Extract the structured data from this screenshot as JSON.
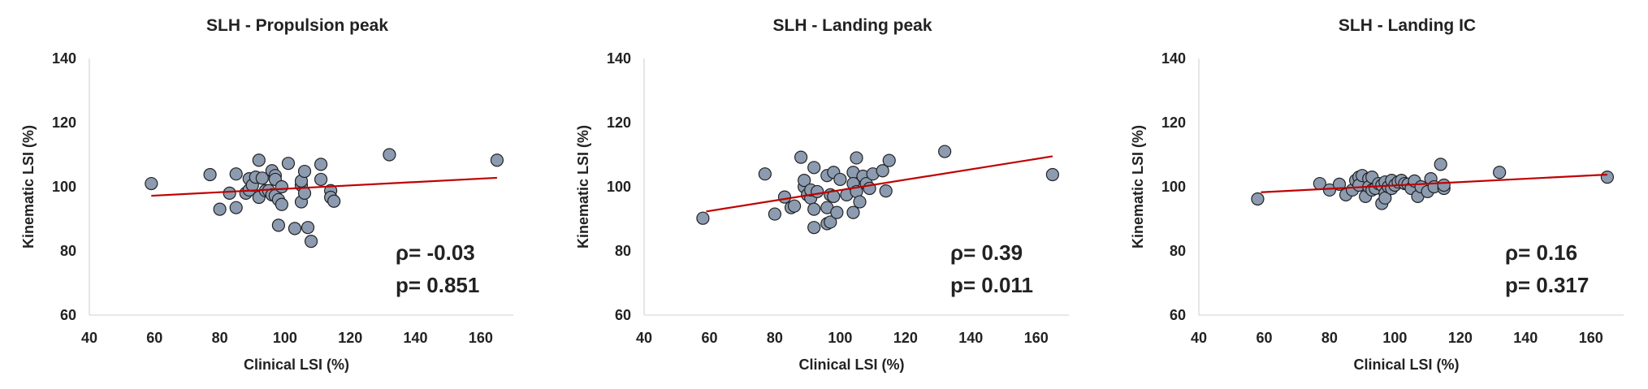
{
  "chart_data": [
    {
      "type": "scatter",
      "title": "SLH - Propulsion peak",
      "xlabel": "Clinical LSI (%)",
      "ylabel": "Kinematic LSI (%)",
      "xlim": [
        40,
        170
      ],
      "ylim": [
        60,
        140
      ],
      "xticks": [
        40,
        60,
        80,
        100,
        120,
        140,
        160
      ],
      "yticks": [
        60,
        80,
        100,
        120,
        140
      ],
      "grid": false,
      "annotation": [
        "ρ= -0.03",
        "p= 0.851"
      ],
      "colors": {
        "point": "#8c9bb0",
        "point_stroke": "#222222",
        "trend": "#c00000"
      },
      "trendline": [
        [
          59,
          97.2
        ],
        [
          165,
          102.8
        ]
      ],
      "points": [
        [
          59,
          101
        ],
        [
          77,
          103.8
        ],
        [
          80,
          93
        ],
        [
          83,
          98
        ],
        [
          85,
          104
        ],
        [
          85,
          93.5
        ],
        [
          88,
          98
        ],
        [
          89,
          102.5
        ],
        [
          89,
          99
        ],
        [
          90,
          100.5
        ],
        [
          91,
          103
        ],
        [
          92,
          108.3
        ],
        [
          92,
          96.7
        ],
        [
          93,
          102.7
        ],
        [
          94,
          98.8
        ],
        [
          95,
          98.8
        ],
        [
          96,
          105
        ],
        [
          96,
          97.5
        ],
        [
          97,
          103.5
        ],
        [
          97,
          102.3
        ],
        [
          97,
          97.2
        ],
        [
          98,
          88
        ],
        [
          98,
          96
        ],
        [
          99,
          100
        ],
        [
          99,
          94.5
        ],
        [
          101,
          107.3
        ],
        [
          103,
          87
        ],
        [
          105,
          100.5
        ],
        [
          105,
          95.3
        ],
        [
          105,
          101.8
        ],
        [
          106,
          104.8
        ],
        [
          106,
          98
        ],
        [
          107,
          87.3
        ],
        [
          108,
          83
        ],
        [
          111,
          102.3
        ],
        [
          111,
          107
        ],
        [
          114,
          98.8
        ],
        [
          114,
          96.7
        ],
        [
          115,
          95.5
        ],
        [
          132,
          110
        ],
        [
          165,
          108.3
        ]
      ]
    },
    {
      "type": "scatter",
      "title": "SLH - Landing peak",
      "xlabel": "Clinical LSI (%)",
      "ylabel": "Kinematic LSI (%)",
      "xlim": [
        40,
        170
      ],
      "ylim": [
        60,
        140
      ],
      "xticks": [
        40,
        60,
        80,
        100,
        120,
        140,
        160
      ],
      "yticks": [
        60,
        80,
        100,
        120,
        140
      ],
      "grid": false,
      "annotation": [
        "ρ= 0.39",
        "p= 0.011"
      ],
      "colors": {
        "point": "#8c9bb0",
        "point_stroke": "#222222",
        "trend": "#c00000"
      },
      "trendline": [
        [
          59,
          92.3
        ],
        [
          165,
          109.5
        ]
      ],
      "points": [
        [
          58,
          90.2
        ],
        [
          77,
          104
        ],
        [
          80,
          91.5
        ],
        [
          83,
          96.8
        ],
        [
          85,
          93.5
        ],
        [
          86,
          94
        ],
        [
          88,
          109.2
        ],
        [
          89,
          100
        ],
        [
          89,
          102
        ],
        [
          90,
          97.5
        ],
        [
          91,
          96.5
        ],
        [
          91,
          99
        ],
        [
          92,
          87.3
        ],
        [
          92,
          106
        ],
        [
          92,
          93
        ],
        [
          93,
          98.5
        ],
        [
          96,
          103.5
        ],
        [
          96,
          93.5
        ],
        [
          96,
          88.5
        ],
        [
          97,
          97.5
        ],
        [
          97,
          89
        ],
        [
          98,
          104.5
        ],
        [
          98,
          97
        ],
        [
          99,
          92
        ],
        [
          100,
          102.3
        ],
        [
          102,
          97.5
        ],
        [
          104,
          104.5
        ],
        [
          104,
          92
        ],
        [
          104,
          101
        ],
        [
          105,
          98.5
        ],
        [
          105,
          109
        ],
        [
          106,
          95.3
        ],
        [
          107,
          103.3
        ],
        [
          108,
          101
        ],
        [
          109,
          99.5
        ],
        [
          110,
          104
        ],
        [
          113,
          105
        ],
        [
          114,
          98.7
        ],
        [
          115,
          108.2
        ],
        [
          132,
          111
        ],
        [
          165,
          103.8
        ]
      ]
    },
    {
      "type": "scatter",
      "title": "SLH - Landing IC",
      "xlabel": "Clinical LSI (%)",
      "ylabel": "Kinematic LSI (%)",
      "xlim": [
        40,
        170
      ],
      "ylim": [
        60,
        140
      ],
      "xticks": [
        40,
        60,
        80,
        100,
        120,
        140,
        160
      ],
      "yticks": [
        60,
        80,
        100,
        120,
        140
      ],
      "grid": false,
      "annotation": [
        "ρ= 0.16",
        "p= 0.317"
      ],
      "colors": {
        "point": "#8c9bb0",
        "point_stroke": "#222222",
        "trend": "#c00000"
      },
      "trendline": [
        [
          59,
          98.3
        ],
        [
          165,
          103.8
        ]
      ],
      "points": [
        [
          58,
          96.2
        ],
        [
          77,
          101
        ],
        [
          80,
          99
        ],
        [
          83,
          100.8
        ],
        [
          85,
          97.5
        ],
        [
          87,
          99
        ],
        [
          88,
          102
        ],
        [
          89,
          103
        ],
        [
          89,
          100.5
        ],
        [
          90,
          103.5
        ],
        [
          91,
          97
        ],
        [
          92,
          102.5
        ],
        [
          92,
          100
        ],
        [
          93,
          103
        ],
        [
          93,
          99
        ],
        [
          94,
          99.5
        ],
        [
          95,
          101
        ],
        [
          96,
          94.8
        ],
        [
          96,
          100.5
        ],
        [
          97,
          101.5
        ],
        [
          97,
          98
        ],
        [
          97,
          96.5
        ],
        [
          98,
          100
        ],
        [
          99,
          99.5
        ],
        [
          99,
          102
        ],
        [
          100,
          100.5
        ],
        [
          101,
          101.5
        ],
        [
          102,
          102
        ],
        [
          103,
          101
        ],
        [
          104,
          100.8
        ],
        [
          105,
          99.5
        ],
        [
          106,
          101.8
        ],
        [
          107,
          97
        ],
        [
          108,
          100
        ],
        [
          110,
          98.5
        ],
        [
          111,
          102.5
        ],
        [
          112,
          100
        ],
        [
          114,
          107
        ],
        [
          115,
          99.5
        ],
        [
          115,
          100.5
        ],
        [
          132,
          104.5
        ],
        [
          165,
          103
        ]
      ]
    }
  ]
}
